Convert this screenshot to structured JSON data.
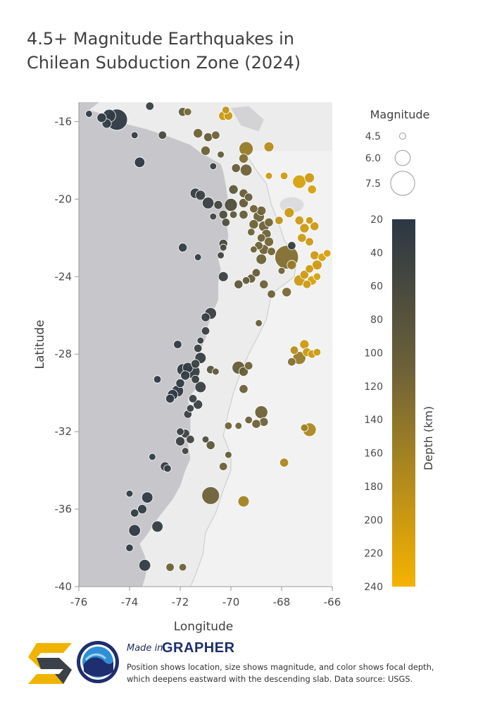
{
  "title": "4.5+ Magnitude Earthquakes in Chilean Subduction Zone (2024)",
  "footer": {
    "made_in": "Made in",
    "brand": "GRAPHER",
    "caption": "Position shows location, size shows magnitude, and color shows focal depth, which deepens eastward with the descending slab. Data source: USGS."
  },
  "colors": {
    "ocean": "#c6c6cb",
    "land": "#ececec",
    "neighbor_land": "#f2f2f2",
    "shallow": "#2b3744",
    "mid": "#6b6038",
    "deep": "#f5b301"
  },
  "chart_data": {
    "type": "scatter",
    "title": "4.5+ Magnitude Earthquakes in Chilean Subduction Zone (2024)",
    "xlabel": "Longitude",
    "ylabel": "Latitude",
    "xlim": [
      -76,
      -66
    ],
    "ylim": [
      -40,
      -15
    ],
    "xticks": [
      "-76",
      "-74",
      "-72",
      "-70",
      "-68",
      "-66"
    ],
    "yticks": [
      "-16",
      "-20",
      "-24",
      "-28",
      "-32",
      "-36",
      "-40"
    ],
    "size_legend": {
      "title": "Magnitude",
      "entries": [
        {
          "label": "4.5",
          "magnitude": 4.5
        },
        {
          "label": "6.0",
          "magnitude": 6.0
        },
        {
          "label": "7.5",
          "magnitude": 7.5
        }
      ]
    },
    "color_legend": {
      "title": "Depth (km)",
      "range": [
        20,
        240
      ],
      "ticks": [
        "20",
        "40",
        "60",
        "80",
        "100",
        "120",
        "140",
        "160",
        "180",
        "200",
        "220",
        "240"
      ]
    },
    "points": [
      {
        "lon": -74.5,
        "lat": -15.9,
        "mag": 7.0,
        "depth": 25
      },
      {
        "lon": -74.8,
        "lat": -15.7,
        "mag": 5.6,
        "depth": 28
      },
      {
        "lon": -74.9,
        "lat": -16.1,
        "mag": 5.0,
        "depth": 30
      },
      {
        "lon": -75.6,
        "lat": -15.6,
        "mag": 4.6,
        "depth": 30
      },
      {
        "lon": -75.1,
        "lat": -15.8,
        "mag": 5.0,
        "depth": 25
      },
      {
        "lon": -73.2,
        "lat": -15.2,
        "mag": 4.8,
        "depth": 40
      },
      {
        "lon": -73.8,
        "lat": -16.7,
        "mag": 4.6,
        "depth": 35
      },
      {
        "lon": -72.7,
        "lat": -16.7,
        "mag": 4.8,
        "depth": 60
      },
      {
        "lon": -71.9,
        "lat": -15.5,
        "mag": 4.9,
        "depth": 100
      },
      {
        "lon": -71.7,
        "lat": -15.5,
        "mag": 4.7,
        "depth": 120
      },
      {
        "lon": -71.3,
        "lat": -16.6,
        "mag": 5.0,
        "depth": 110
      },
      {
        "lon": -70.9,
        "lat": -16.8,
        "mag": 4.9,
        "depth": 100
      },
      {
        "lon": -70.6,
        "lat": -16.7,
        "mag": 4.8,
        "depth": 110
      },
      {
        "lon": -71.0,
        "lat": -17.5,
        "mag": 5.0,
        "depth": 110
      },
      {
        "lon": -70.4,
        "lat": -17.7,
        "mag": 4.6,
        "depth": 100
      },
      {
        "lon": -69.4,
        "lat": -17.4,
        "mag": 5.8,
        "depth": 150
      },
      {
        "lon": -69.5,
        "lat": -17.9,
        "mag": 5.0,
        "depth": 130
      },
      {
        "lon": -69.4,
        "lat": -18.5,
        "mag": 5.4,
        "depth": 110
      },
      {
        "lon": -69.8,
        "lat": -18.4,
        "mag": 4.9,
        "depth": 100
      },
      {
        "lon": -70.2,
        "lat": -15.4,
        "mag": 4.7,
        "depth": 190
      },
      {
        "lon": -70.3,
        "lat": -15.7,
        "mag": 5.0,
        "depth": 200
      },
      {
        "lon": -70.1,
        "lat": -15.7,
        "mag": 4.9,
        "depth": 200
      },
      {
        "lon": -68.5,
        "lat": -17.3,
        "mag": 5.1,
        "depth": 180
      },
      {
        "lon": -73.6,
        "lat": -18.1,
        "mag": 5.2,
        "depth": 25
      },
      {
        "lon": -70.7,
        "lat": -18.3,
        "mag": 4.6,
        "depth": 40
      },
      {
        "lon": -71.4,
        "lat": -19.7,
        "mag": 5.2,
        "depth": 35
      },
      {
        "lon": -71.2,
        "lat": -19.8,
        "mag": 5.1,
        "depth": 40
      },
      {
        "lon": -70.9,
        "lat": -20.2,
        "mag": 5.4,
        "depth": 40
      },
      {
        "lon": -70.5,
        "lat": -20.3,
        "mag": 4.9,
        "depth": 50
      },
      {
        "lon": -70.0,
        "lat": -20.3,
        "mag": 5.6,
        "depth": 70
      },
      {
        "lon": -69.9,
        "lat": -19.5,
        "mag": 5.0,
        "depth": 90
      },
      {
        "lon": -69.5,
        "lat": -19.7,
        "mag": 4.9,
        "depth": 100
      },
      {
        "lon": -69.3,
        "lat": -19.9,
        "mag": 4.8,
        "depth": 100
      },
      {
        "lon": -69.5,
        "lat": -20.2,
        "mag": 5.0,
        "depth": 100
      },
      {
        "lon": -69.1,
        "lat": -20.5,
        "mag": 4.8,
        "depth": 110
      },
      {
        "lon": -69.5,
        "lat": -20.8,
        "mag": 4.9,
        "depth": 100
      },
      {
        "lon": -69.9,
        "lat": -20.8,
        "mag": 4.7,
        "depth": 90
      },
      {
        "lon": -70.3,
        "lat": -20.8,
        "mag": 4.9,
        "depth": 70
      },
      {
        "lon": -70.7,
        "lat": -20.9,
        "mag": 4.6,
        "depth": 50
      },
      {
        "lon": -70.2,
        "lat": -21.2,
        "mag": 4.8,
        "depth": 70
      },
      {
        "lon": -70.3,
        "lat": -22.3,
        "mag": 4.9,
        "depth": 60
      },
      {
        "lon": -70.3,
        "lat": -22.5,
        "mag": 4.6,
        "depth": 60
      },
      {
        "lon": -71.9,
        "lat": -22.5,
        "mag": 4.9,
        "depth": 30
      },
      {
        "lon": -71.3,
        "lat": -23.0,
        "mag": 4.6,
        "depth": 35
      },
      {
        "lon": -70.4,
        "lat": -22.9,
        "mag": 4.6,
        "depth": 50
      },
      {
        "lon": -68.8,
        "lat": -20.6,
        "mag": 5.0,
        "depth": 110
      },
      {
        "lon": -68.9,
        "lat": -20.9,
        "mag": 5.3,
        "depth": 110
      },
      {
        "lon": -69.1,
        "lat": -21.3,
        "mag": 5.0,
        "depth": 110
      },
      {
        "lon": -68.7,
        "lat": -21.4,
        "mag": 5.2,
        "depth": 110
      },
      {
        "lon": -68.5,
        "lat": -21.2,
        "mag": 4.9,
        "depth": 115
      },
      {
        "lon": -68.6,
        "lat": -21.8,
        "mag": 5.0,
        "depth": 110
      },
      {
        "lon": -68.8,
        "lat": -22.0,
        "mag": 4.8,
        "depth": 110
      },
      {
        "lon": -68.5,
        "lat": -22.2,
        "mag": 5.0,
        "depth": 115
      },
      {
        "lon": -68.7,
        "lat": -22.6,
        "mag": 5.1,
        "depth": 110
      },
      {
        "lon": -68.9,
        "lat": -22.4,
        "mag": 4.8,
        "depth": 110
      },
      {
        "lon": -69.2,
        "lat": -21.7,
        "mag": 4.7,
        "depth": 110
      },
      {
        "lon": -69.1,
        "lat": -22.6,
        "mag": 4.6,
        "depth": 110
      },
      {
        "lon": -68.8,
        "lat": -23.1,
        "mag": 5.2,
        "depth": 110
      },
      {
        "lon": -68.4,
        "lat": -22.7,
        "mag": 4.8,
        "depth": 115
      },
      {
        "lon": -67.8,
        "lat": -23.0,
        "mag": 7.4,
        "depth": 130
      },
      {
        "lon": -67.6,
        "lat": -23.4,
        "mag": 5.0,
        "depth": 150
      },
      {
        "lon": -67.6,
        "lat": -22.4,
        "mag": 4.8,
        "depth": 30
      },
      {
        "lon": -68.1,
        "lat": -21.1,
        "mag": 4.8,
        "depth": 190
      },
      {
        "lon": -67.7,
        "lat": -20.7,
        "mag": 5.1,
        "depth": 200
      },
      {
        "lon": -67.3,
        "lat": -21.1,
        "mag": 4.9,
        "depth": 200
      },
      {
        "lon": -67.1,
        "lat": -21.5,
        "mag": 5.0,
        "depth": 200
      },
      {
        "lon": -67.2,
        "lat": -22.0,
        "mag": 4.9,
        "depth": 200
      },
      {
        "lon": -66.9,
        "lat": -21.1,
        "mag": 4.7,
        "depth": 200
      },
      {
        "lon": -66.7,
        "lat": -21.4,
        "mag": 4.9,
        "depth": 200
      },
      {
        "lon": -66.9,
        "lat": -22.2,
        "mag": 4.8,
        "depth": 200
      },
      {
        "lon": -67.3,
        "lat": -19.1,
        "mag": 5.7,
        "depth": 210
      },
      {
        "lon": -66.9,
        "lat": -18.9,
        "mag": 5.1,
        "depth": 200
      },
      {
        "lon": -67.9,
        "lat": -18.8,
        "mag": 4.7,
        "depth": 200
      },
      {
        "lon": -66.8,
        "lat": -19.5,
        "mag": 4.9,
        "depth": 210
      },
      {
        "lon": -68.5,
        "lat": -18.8,
        "mag": 4.6,
        "depth": 200
      },
      {
        "lon": -66.7,
        "lat": -22.9,
        "mag": 4.9,
        "depth": 200
      },
      {
        "lon": -66.6,
        "lat": -23.4,
        "mag": 5.1,
        "depth": 200
      },
      {
        "lon": -66.4,
        "lat": -23.0,
        "mag": 4.8,
        "depth": 210
      },
      {
        "lon": -66.2,
        "lat": -22.8,
        "mag": 4.7,
        "depth": 210
      },
      {
        "lon": -66.9,
        "lat": -23.6,
        "mag": 4.8,
        "depth": 200
      },
      {
        "lon": -67.1,
        "lat": -23.9,
        "mag": 4.9,
        "depth": 200
      },
      {
        "lon": -67.3,
        "lat": -24.2,
        "mag": 5.3,
        "depth": 200
      },
      {
        "lon": -66.8,
        "lat": -24.2,
        "mag": 5.0,
        "depth": 210
      },
      {
        "lon": -67.0,
        "lat": -24.4,
        "mag": 4.8,
        "depth": 200
      },
      {
        "lon": -66.6,
        "lat": -24.0,
        "mag": 4.7,
        "depth": 210
      },
      {
        "lon": -68.0,
        "lat": -23.7,
        "mag": 4.6,
        "depth": 110
      },
      {
        "lon": -69.2,
        "lat": -24.1,
        "mag": 4.9,
        "depth": 100
      },
      {
        "lon": -69.0,
        "lat": -23.8,
        "mag": 4.8,
        "depth": 100
      },
      {
        "lon": -69.7,
        "lat": -24.4,
        "mag": 4.9,
        "depth": 90
      },
      {
        "lon": -69.4,
        "lat": -24.2,
        "mag": 4.7,
        "depth": 95
      },
      {
        "lon": -68.7,
        "lat": -24.4,
        "mag": 4.9,
        "depth": 110
      },
      {
        "lon": -68.4,
        "lat": -24.9,
        "mag": 4.8,
        "depth": 110
      },
      {
        "lon": -67.8,
        "lat": -24.8,
        "mag": 5.0,
        "depth": 120
      },
      {
        "lon": -70.3,
        "lat": -24.0,
        "mag": 5.1,
        "depth": 40
      },
      {
        "lon": -70.8,
        "lat": -25.9,
        "mag": 5.4,
        "depth": 40
      },
      {
        "lon": -71.0,
        "lat": -26.1,
        "mag": 4.9,
        "depth": 35
      },
      {
        "lon": -71.0,
        "lat": -26.8,
        "mag": 4.8,
        "depth": 40
      },
      {
        "lon": -68.9,
        "lat": -26.4,
        "mag": 4.6,
        "depth": 100
      },
      {
        "lon": -71.2,
        "lat": -27.3,
        "mag": 4.6,
        "depth": 40
      },
      {
        "lon": -71.3,
        "lat": -27.7,
        "mag": 4.8,
        "depth": 40
      },
      {
        "lon": -71.2,
        "lat": -28.2,
        "mag": 5.3,
        "depth": 35
      },
      {
        "lon": -71.4,
        "lat": -28.5,
        "mag": 4.9,
        "depth": 40
      },
      {
        "lon": -72.1,
        "lat": -27.5,
        "mag": 4.8,
        "depth": 25
      },
      {
        "lon": -71.7,
        "lat": -28.7,
        "mag": 5.2,
        "depth": 30
      },
      {
        "lon": -71.5,
        "lat": -28.9,
        "mag": 5.8,
        "depth": 35
      },
      {
        "lon": -71.9,
        "lat": -28.8,
        "mag": 5.4,
        "depth": 30
      },
      {
        "lon": -71.8,
        "lat": -29.1,
        "mag": 5.0,
        "depth": 30
      },
      {
        "lon": -72.0,
        "lat": -29.5,
        "mag": 4.9,
        "depth": 25
      },
      {
        "lon": -72.1,
        "lat": -29.9,
        "mag": 5.4,
        "depth": 25
      },
      {
        "lon": -72.3,
        "lat": -30.1,
        "mag": 5.2,
        "depth": 25
      },
      {
        "lon": -72.4,
        "lat": -30.3,
        "mag": 4.9,
        "depth": 25
      },
      {
        "lon": -72.9,
        "lat": -29.3,
        "mag": 4.7,
        "depth": 25
      },
      {
        "lon": -71.2,
        "lat": -29.7,
        "mag": 5.3,
        "depth": 40
      },
      {
        "lon": -71.4,
        "lat": -29.3,
        "mag": 4.8,
        "depth": 40
      },
      {
        "lon": -71.5,
        "lat": -30.3,
        "mag": 4.8,
        "depth": 40
      },
      {
        "lon": -71.3,
        "lat": -30.6,
        "mag": 5.0,
        "depth": 40
      },
      {
        "lon": -71.6,
        "lat": -30.8,
        "mag": 4.7,
        "depth": 40
      },
      {
        "lon": -71.7,
        "lat": -31.1,
        "mag": 4.8,
        "depth": 40
      },
      {
        "lon": -70.8,
        "lat": -28.8,
        "mag": 4.8,
        "depth": 80
      },
      {
        "lon": -70.6,
        "lat": -28.9,
        "mag": 4.6,
        "depth": 90
      },
      {
        "lon": -69.7,
        "lat": -28.7,
        "mag": 5.6,
        "depth": 100
      },
      {
        "lon": -69.5,
        "lat": -28.9,
        "mag": 5.0,
        "depth": 100
      },
      {
        "lon": -69.5,
        "lat": -29.8,
        "mag": 4.9,
        "depth": 110
      },
      {
        "lon": -69.3,
        "lat": -28.6,
        "mag": 4.8,
        "depth": 110
      },
      {
        "lon": -68.8,
        "lat": -31.0,
        "mag": 5.6,
        "depth": 110
      },
      {
        "lon": -68.7,
        "lat": -31.5,
        "mag": 4.9,
        "depth": 110
      },
      {
        "lon": -69.0,
        "lat": -31.6,
        "mag": 4.9,
        "depth": 110
      },
      {
        "lon": -69.3,
        "lat": -31.4,
        "mag": 4.7,
        "depth": 105
      },
      {
        "lon": -69.7,
        "lat": -31.7,
        "mag": 4.6,
        "depth": 110
      },
      {
        "lon": -70.1,
        "lat": -31.7,
        "mag": 4.7,
        "depth": 110
      },
      {
        "lon": -67.5,
        "lat": -27.8,
        "mag": 4.8,
        "depth": 180
      },
      {
        "lon": -67.1,
        "lat": -27.5,
        "mag": 5.0,
        "depth": 200
      },
      {
        "lon": -67.0,
        "lat": -27.9,
        "mag": 4.9,
        "depth": 200
      },
      {
        "lon": -67.3,
        "lat": -28.2,
        "mag": 5.6,
        "depth": 150
      },
      {
        "lon": -67.6,
        "lat": -28.4,
        "mag": 4.8,
        "depth": 130
      },
      {
        "lon": -66.8,
        "lat": -28.0,
        "mag": 4.8,
        "depth": 200
      },
      {
        "lon": -66.6,
        "lat": -27.9,
        "mag": 4.7,
        "depth": 200
      },
      {
        "lon": -66.9,
        "lat": -31.9,
        "mag": 5.7,
        "depth": 170
      },
      {
        "lon": -67.1,
        "lat": -31.8,
        "mag": 4.7,
        "depth": 160
      },
      {
        "lon": -67.9,
        "lat": -33.6,
        "mag": 4.9,
        "depth": 170
      },
      {
        "lon": -72.0,
        "lat": -32.0,
        "mag": 4.7,
        "depth": 40
      },
      {
        "lon": -71.8,
        "lat": -32.1,
        "mag": 4.9,
        "depth": 45
      },
      {
        "lon": -71.6,
        "lat": -32.4,
        "mag": 4.8,
        "depth": 50
      },
      {
        "lon": -72.0,
        "lat": -32.5,
        "mag": 5.0,
        "depth": 40
      },
      {
        "lon": -71.8,
        "lat": -33.0,
        "mag": 4.6,
        "depth": 50
      },
      {
        "lon": -71.0,
        "lat": -32.4,
        "mag": 4.6,
        "depth": 70
      },
      {
        "lon": -70.8,
        "lat": -32.7,
        "mag": 4.9,
        "depth": 90
      },
      {
        "lon": -70.1,
        "lat": -33.2,
        "mag": 4.6,
        "depth": 100
      },
      {
        "lon": -70.3,
        "lat": -33.8,
        "mag": 4.8,
        "depth": 110
      },
      {
        "lon": -73.1,
        "lat": -33.3,
        "mag": 4.6,
        "depth": 30
      },
      {
        "lon": -72.6,
        "lat": -33.8,
        "mag": 5.0,
        "depth": 35
      },
      {
        "lon": -72.5,
        "lat": -33.9,
        "mag": 4.7,
        "depth": 35
      },
      {
        "lon": -70.8,
        "lat": -35.3,
        "mag": 6.4,
        "depth": 110
      },
      {
        "lon": -69.5,
        "lat": -35.6,
        "mag": 5.3,
        "depth": 160
      },
      {
        "lon": -74.0,
        "lat": -35.2,
        "mag": 4.6,
        "depth": 30
      },
      {
        "lon": -73.3,
        "lat": -35.4,
        "mag": 5.3,
        "depth": 25
      },
      {
        "lon": -73.5,
        "lat": -36.0,
        "mag": 5.0,
        "depth": 30
      },
      {
        "lon": -73.8,
        "lat": -36.2,
        "mag": 4.8,
        "depth": 30
      },
      {
        "lon": -73.8,
        "lat": -37.1,
        "mag": 5.4,
        "depth": 25
      },
      {
        "lon": -72.9,
        "lat": -36.9,
        "mag": 5.3,
        "depth": 30
      },
      {
        "lon": -74.0,
        "lat": -38.0,
        "mag": 4.7,
        "depth": 25
      },
      {
        "lon": -73.4,
        "lat": -38.9,
        "mag": 5.4,
        "depth": 30
      },
      {
        "lon": -72.4,
        "lat": -39.0,
        "mag": 4.8,
        "depth": 110
      },
      {
        "lon": -71.9,
        "lat": -39.0,
        "mag": 4.7,
        "depth": 110
      }
    ]
  }
}
